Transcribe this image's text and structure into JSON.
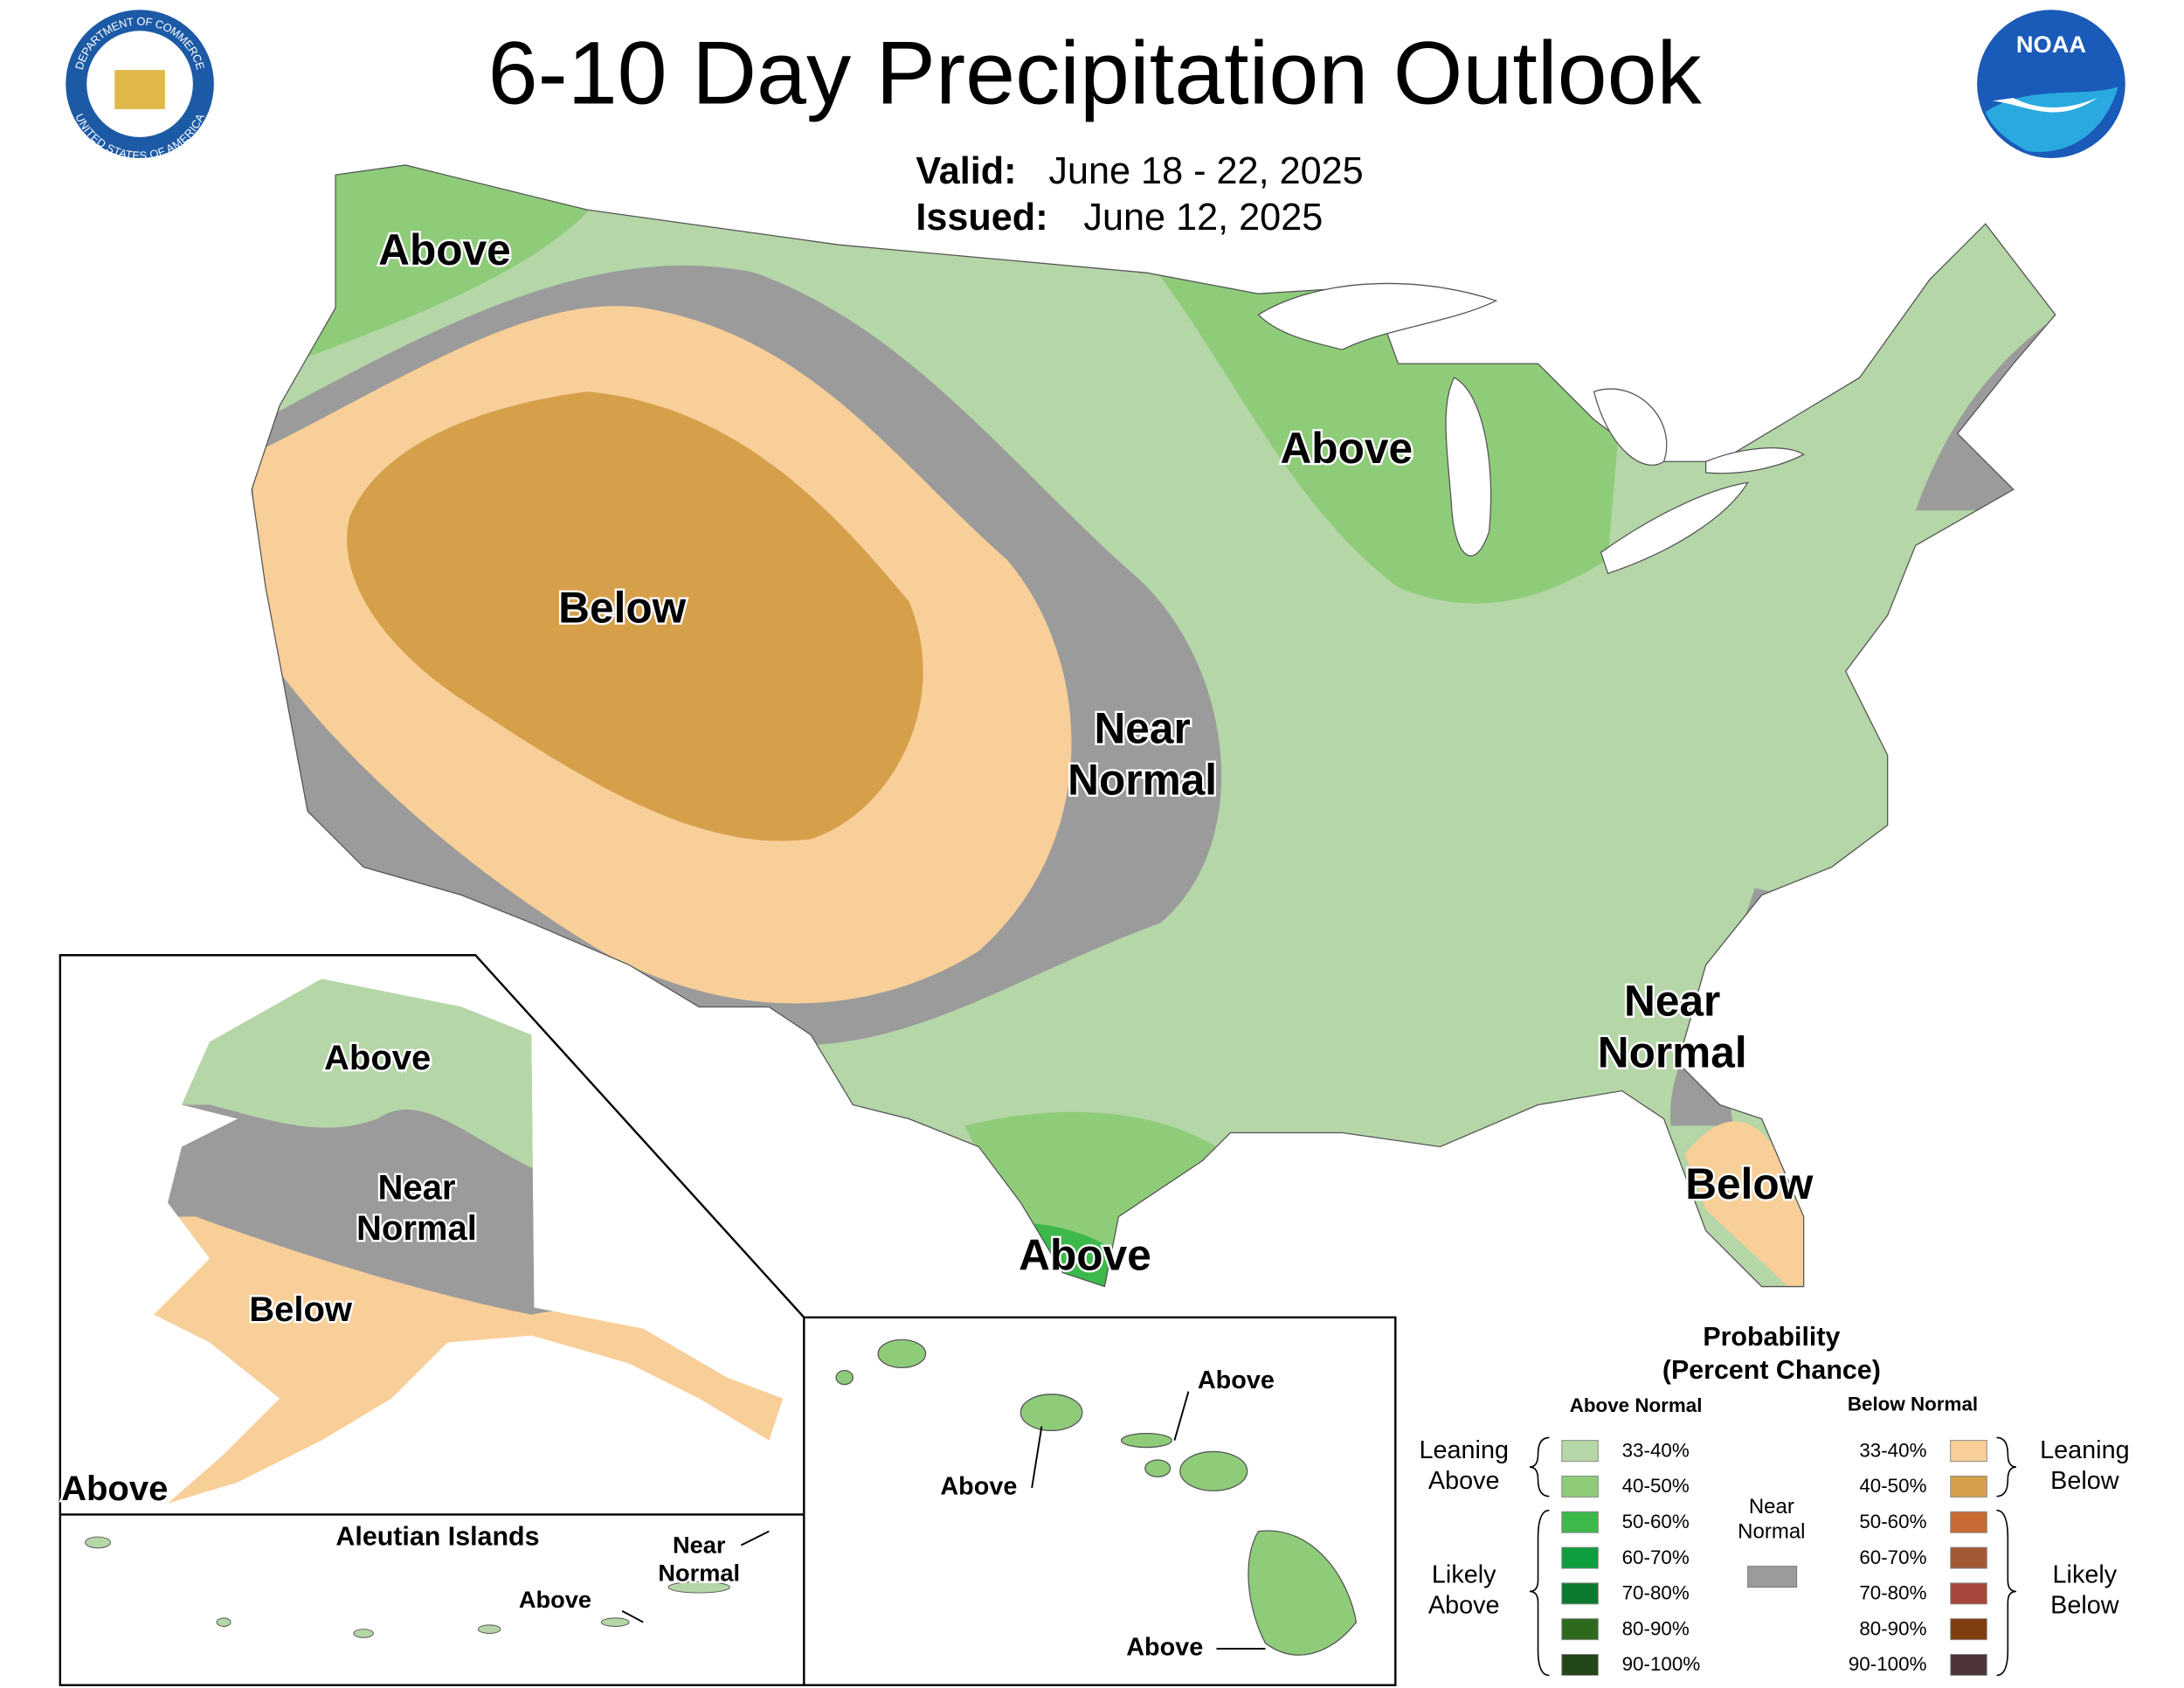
{
  "header": {
    "title": "6-10 Day Precipitation Outlook",
    "valid_label": "Valid:",
    "valid": "June 18 - 22, 2025",
    "issued_label": "Issued:",
    "issued": "June 12, 2025"
  },
  "logos": {
    "commerce_top": "DEPARTMENT OF COMMERCE",
    "commerce_bottom": "UNITED STATES OF AMERICA",
    "noaa": "NOAA"
  },
  "conus_labels": [
    [
      "Above"
    ],
    [
      "Above"
    ],
    [
      "Below"
    ],
    [
      "Near",
      "Normal"
    ],
    [
      "Near",
      "Normal"
    ],
    [
      "Below"
    ],
    [
      "Above"
    ]
  ],
  "alaska_labels": [
    [
      "Above"
    ],
    [
      "Near",
      "Normal"
    ],
    [
      "Below"
    ],
    [
      "Above"
    ]
  ],
  "aleutians": {
    "title": "Aleutian Islands",
    "labels": [
      [
        "Above"
      ],
      [
        "Near",
        "Normal"
      ]
    ]
  },
  "hawaii_labels": [
    [
      "Above"
    ],
    [
      "Above"
    ],
    [
      "Above"
    ]
  ],
  "legend": {
    "title": "Probability",
    "subtitle": "(Percent Chance)",
    "above": {
      "heading": "Above Normal",
      "items": [
        {
          "label": "33-40%",
          "color": "#b5d6a7"
        },
        {
          "label": "40-50%",
          "color": "#8fcc7a"
        },
        {
          "label": "50-60%",
          "color": "#3cb94a"
        },
        {
          "label": "60-70%",
          "color": "#0e9e3f"
        },
        {
          "label": "70-80%",
          "color": "#0b7a2e"
        },
        {
          "label": "80-90%",
          "color": "#2d6a1e"
        },
        {
          "label": "90-100%",
          "color": "#23461a"
        }
      ]
    },
    "below": {
      "heading": "Below Normal",
      "items": [
        {
          "label": "33-40%",
          "color": "#f8cf99"
        },
        {
          "label": "40-50%",
          "color": "#d6a04b"
        },
        {
          "label": "50-60%",
          "color": "#c96a34"
        },
        {
          "label": "60-70%",
          "color": "#a35835"
        },
        {
          "label": "70-80%",
          "color": "#a7463c"
        },
        {
          "label": "80-90%",
          "color": "#7f3d10"
        },
        {
          "label": "90-100%",
          "color": "#4d3537"
        }
      ]
    },
    "near_normal": {
      "label": [
        "Near",
        "Normal"
      ],
      "color": "#9b9b9b"
    },
    "groups": {
      "leaning_above": [
        "Leaning",
        "Above"
      ],
      "likely_above": [
        "Likely",
        "Above"
      ],
      "leaning_below": [
        "Leaning",
        "Below"
      ],
      "likely_below": [
        "Likely",
        "Below"
      ]
    }
  }
}
